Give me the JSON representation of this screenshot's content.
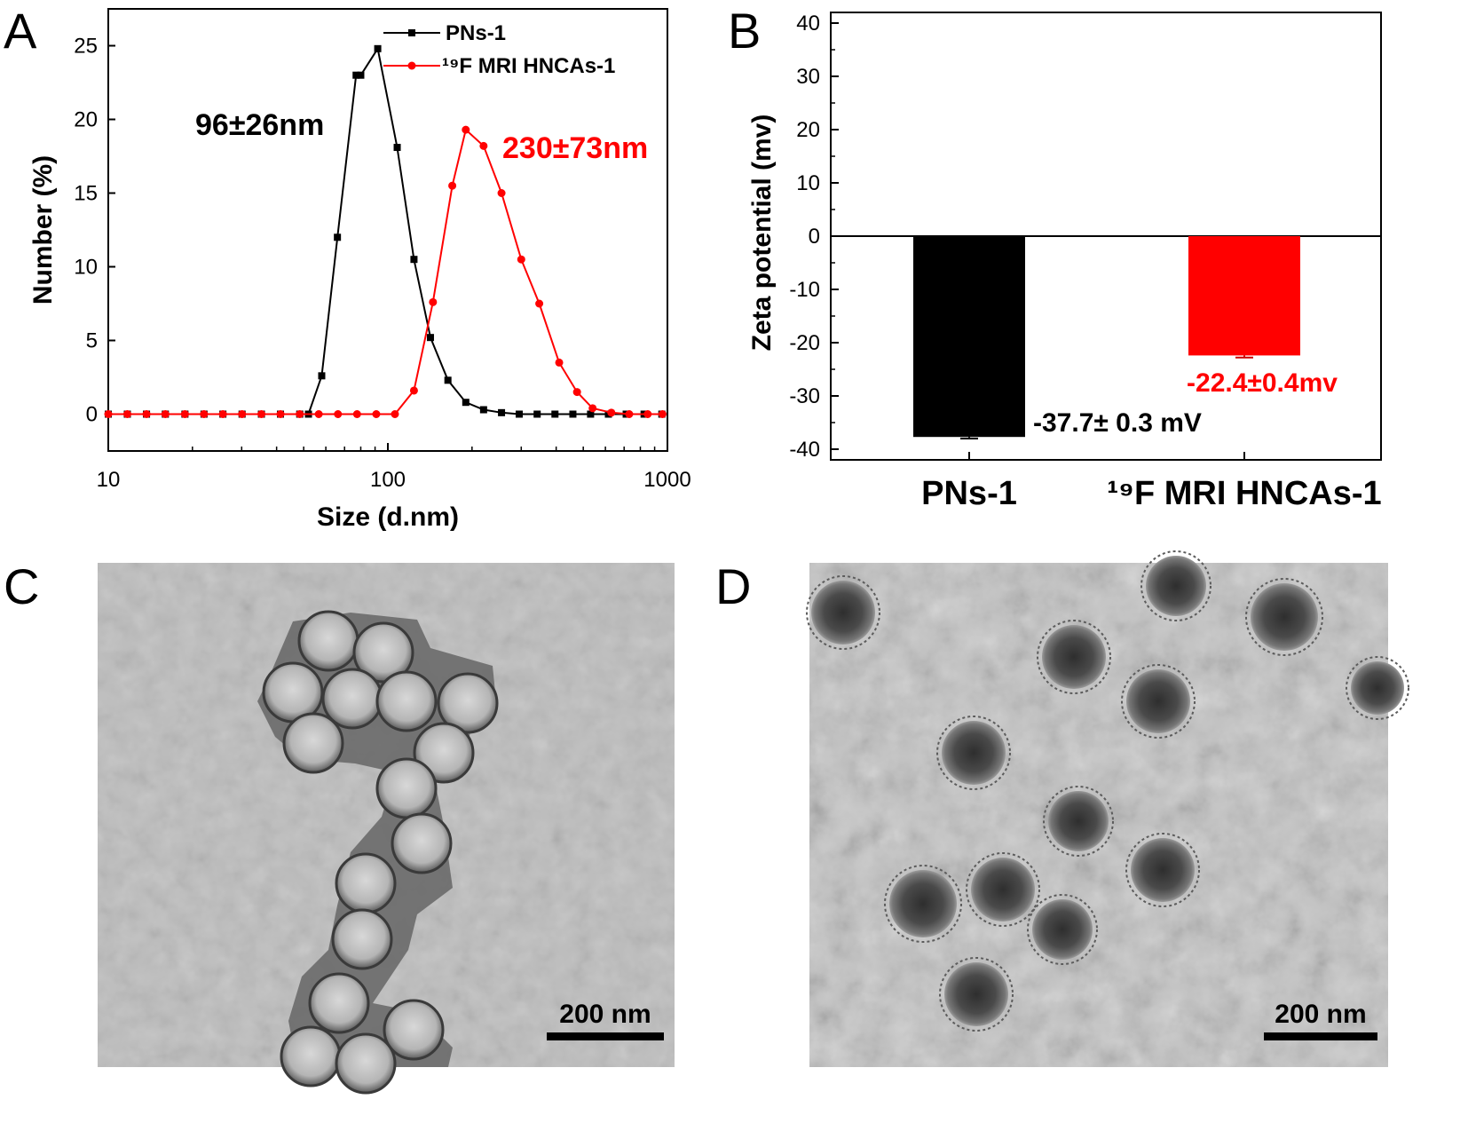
{
  "panels": {
    "a": "A",
    "b": "B",
    "c": "C",
    "d": "D"
  },
  "chart_data": [
    {
      "type": "line",
      "panel": "A",
      "xlabel": "Size (d.nm)",
      "ylabel": "Number (%)",
      "xscale": "log",
      "xlim": [
        10,
        1000
      ],
      "ylim": [
        -2.5,
        27.5
      ],
      "xticks": [
        "10",
        "100",
        "1000"
      ],
      "yticks": [
        "0",
        "5",
        "10",
        "15",
        "20",
        "25"
      ],
      "legend": "top-right",
      "grid": false,
      "series": [
        {
          "name": "PNs-1",
          "color": "#000000",
          "marker": "square",
          "x": [
            10,
            11.7,
            13.7,
            16.0,
            18.8,
            22.0,
            25.7,
            30.1,
            35.3,
            41.3,
            48.4,
            52.0,
            58.0,
            66.0,
            77.0,
            80.0,
            92.0,
            108.0,
            124.0,
            142.0,
            164.0,
            190.0,
            220.0,
            255.0,
            295.0,
            342.0,
            396.0,
            459.0,
            531.0,
            615.0,
            712.0,
            825.0,
            955.0
          ],
          "y": [
            0,
            0,
            0,
            0,
            0,
            0,
            0,
            0,
            0,
            0,
            0,
            0,
            2.6,
            12.0,
            23.0,
            23.0,
            24.8,
            18.1,
            10.5,
            5.2,
            2.3,
            0.8,
            0.3,
            0.1,
            0,
            0,
            0,
            0,
            0,
            0,
            0,
            0,
            0
          ]
        },
        {
          "name": "¹⁹F MRI HNCAs-1",
          "color": "#ff0000",
          "marker": "circle",
          "x": [
            10,
            11.7,
            13.7,
            16.0,
            18.8,
            22.0,
            25.7,
            30.1,
            35.3,
            41.3,
            48.4,
            56.6,
            66.3,
            77.6,
            90.9,
            106.0,
            124.0,
            145.0,
            170.0,
            190.0,
            220.0,
            255.0,
            300.0,
            348.0,
            410.0,
            475.0,
            540.0,
            630.0,
            730.0,
            850.0,
            960.0
          ],
          "y": [
            0,
            0,
            0,
            0,
            0,
            0,
            0,
            0,
            0,
            0,
            0,
            0,
            0,
            0,
            0,
            0,
            1.6,
            7.6,
            15.5,
            19.3,
            18.2,
            15.0,
            10.5,
            7.5,
            3.5,
            1.5,
            0.4,
            0.1,
            0,
            0,
            0
          ]
        }
      ],
      "annotations": [
        {
          "text": "96±26nm",
          "color": "#000000"
        },
        {
          "text": "230±73nm",
          "color": "#ff0000"
        }
      ]
    },
    {
      "type": "bar",
      "panel": "B",
      "ylabel": "Zeta potential (mv)",
      "ylim": [
        -42,
        42
      ],
      "yticks": [
        "40",
        "30",
        "20",
        "10",
        "0",
        "-10",
        "-20",
        "-30",
        "-40"
      ],
      "categories": [
        "PNs-1",
        "¹⁹F MRI HNCAs-1"
      ],
      "values": [
        -37.7,
        -22.4
      ],
      "errors": [
        0.3,
        0.4
      ],
      "colors": [
        "#000000",
        "#ff0000"
      ],
      "bar_labels": [
        {
          "text": "-37.7± 0.3 mV",
          "color": "#000000"
        },
        {
          "text": "-22.4±0.4mv",
          "color": "#ff0000"
        }
      ]
    }
  ],
  "micrographs": {
    "c_scale": "200 nm",
    "d_scale": "200 nm"
  }
}
